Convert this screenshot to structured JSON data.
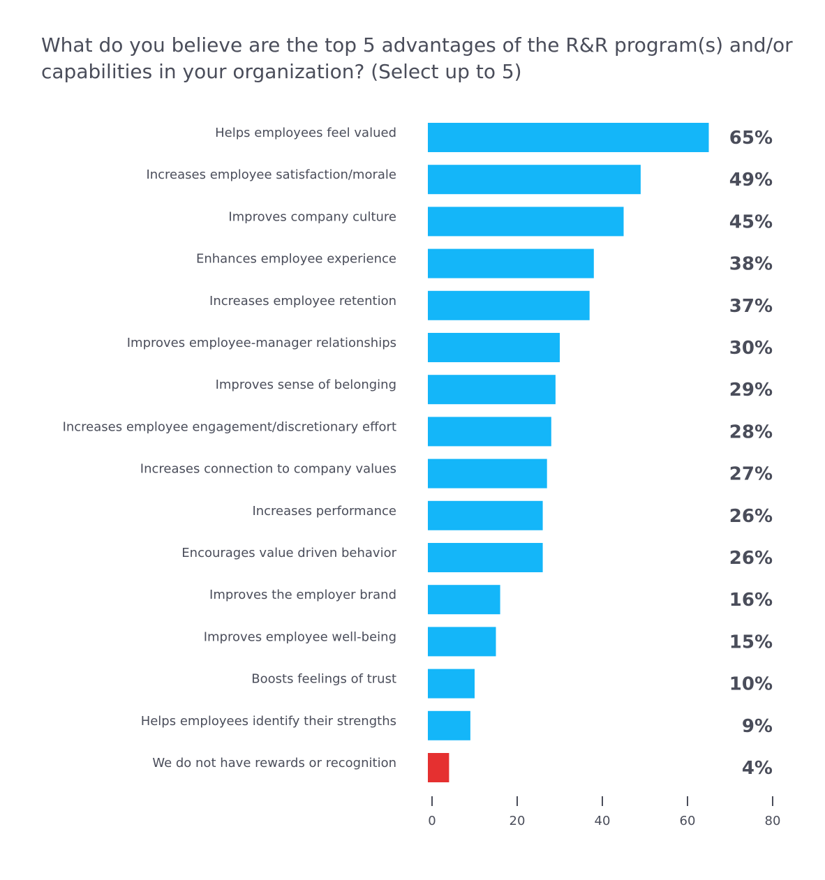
{
  "chart_data": {
    "type": "bar",
    "orientation": "horizontal",
    "title": "What do you believe are the top 5 advantages of the R&R program(s) and/or capabilities in your organization? (Select up to 5)",
    "categories": [
      "Helps employees feel valued",
      "Increases employee satisfaction/morale",
      "Improves company culture",
      "Enhances employee experience",
      "Increases employee retention",
      "Improves employee-manager relationships",
      "Improves sense of belonging",
      "Increases employee engagement/discretionary effort",
      "Increases connection to company values",
      "Increases performance",
      "Encourages value driven behavior",
      "Improves the employer brand",
      "Improves employee well-being",
      "Boosts feelings of trust",
      "Helps employees identify their strengths",
      "We do not have rewards or recognition"
    ],
    "values": [
      65,
      49,
      45,
      38,
      37,
      30,
      29,
      28,
      27,
      26,
      26,
      16,
      15,
      10,
      9,
      4
    ],
    "value_labels": [
      "65%",
      "49%",
      "45%",
      "38%",
      "37%",
      "30%",
      "29%",
      "28%",
      "27%",
      "26%",
      "26%",
      "16%",
      "15%",
      "10%",
      "9%",
      "4%"
    ],
    "highlight_index": 15,
    "xlim": [
      0,
      80
    ],
    "xticks": [
      0,
      20,
      40,
      60,
      80
    ],
    "xtick_labels": [
      "0",
      "20",
      "40",
      "60",
      "80"
    ],
    "xlabel": "",
    "ylabel": "",
    "grid": false,
    "colors": {
      "bar": "#14b6f9",
      "highlight": "#e53030",
      "text": "#4a4d5a"
    }
  }
}
